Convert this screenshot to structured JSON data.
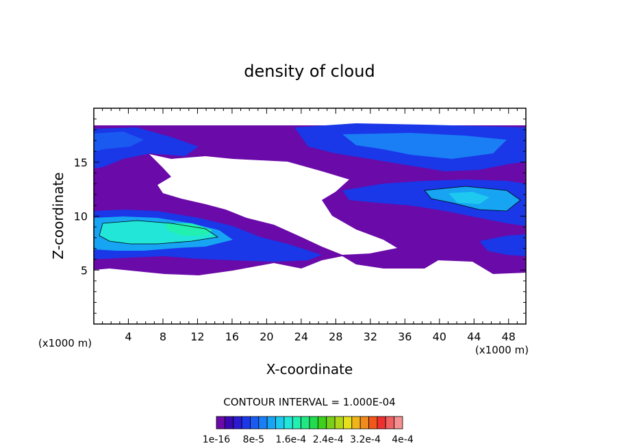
{
  "chart_data": {
    "type": "heatmap",
    "title": "density of cloud",
    "xlabel": "X-coordinate",
    "ylabel": "Z-coordinate",
    "x_unit": "(x1000 m)",
    "y_unit": "(x1000 m)",
    "xlim": [
      0,
      50
    ],
    "ylim": [
      0,
      20
    ],
    "x_ticks": [
      4,
      8,
      12,
      16,
      20,
      24,
      28,
      32,
      36,
      40,
      44,
      48
    ],
    "y_ticks": [
      5,
      10,
      15
    ],
    "contour_interval_label": "CONTOUR INTERVAL = 1.000E-04",
    "colorbar_labels": [
      "1e-16",
      "8e-5",
      "1.6e-4",
      "2.4e-4",
      "3.2e-4",
      "4e-4"
    ],
    "colorbar_colors": [
      "#6a0aa8",
      "#3a08b0",
      "#2b1ad0",
      "#1a37e8",
      "#1a5af0",
      "#1a7ef4",
      "#17a4f2",
      "#1ec8ee",
      "#21e6d8",
      "#22f0b0",
      "#22e882",
      "#22dc50",
      "#3ed01c",
      "#78d01a",
      "#b0d61a",
      "#e6e01a",
      "#f0b41a",
      "#f08a1a",
      "#f0581a",
      "#ee3030",
      "#f06262",
      "#f49090"
    ],
    "regions": [
      {
        "name": "upper-left band",
        "level": "1e-16 to 8e-5",
        "z_range": [
          13.5,
          18.5
        ]
      },
      {
        "name": "upper-right band",
        "level": "8e-5 to 1.6e-4",
        "z_range": [
          14,
          18.5
        ]
      },
      {
        "name": "mid-right band",
        "level": "8e-5 to 1.6e-4",
        "z_range": [
          9.5,
          13
        ]
      },
      {
        "name": "lower-left band",
        "level": "1.6e-4 to 2.4e-4",
        "z_range": [
          5,
          10.5
        ]
      }
    ]
  }
}
